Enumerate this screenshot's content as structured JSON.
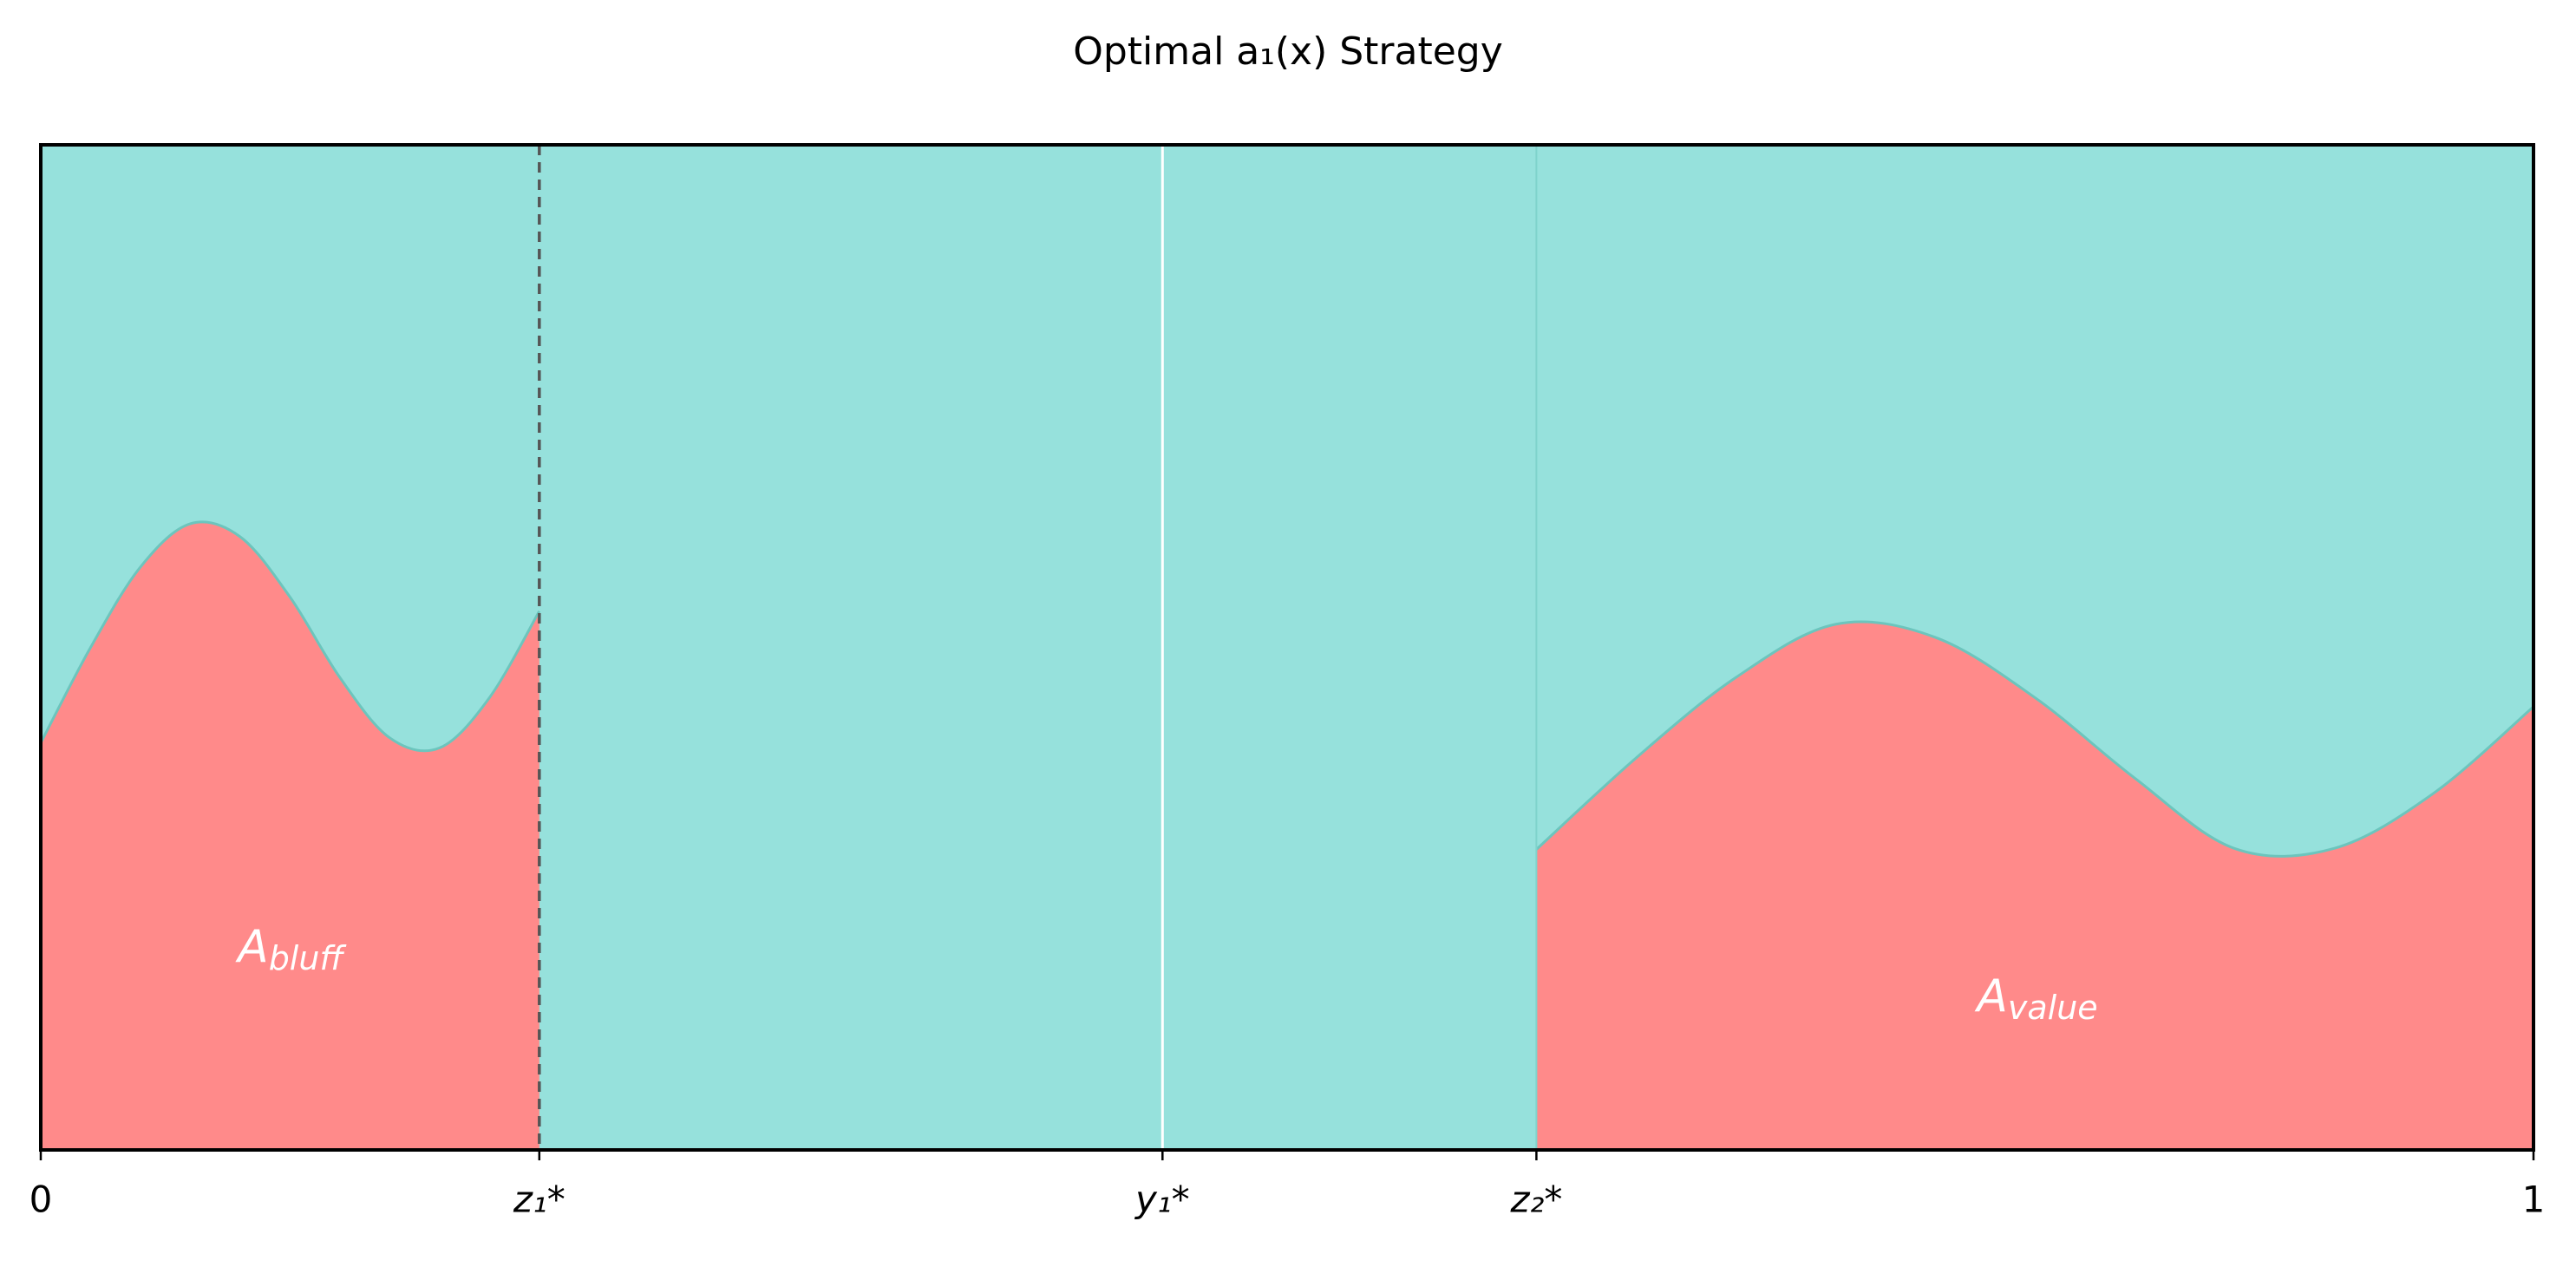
{
  "chart_data": {
    "type": "area",
    "title": "Optimal a₁(x) Strategy",
    "x": [
      0,
      0.02,
      0.04,
      0.06,
      0.08,
      0.1,
      0.12,
      0.14,
      0.16,
      0.18,
      0.2,
      0.4,
      0.6,
      0.64,
      0.68,
      0.72,
      0.76,
      0.8,
      0.84,
      0.88,
      0.92,
      0.96,
      1.0
    ],
    "series": [
      {
        "color": "#ff8a8a",
        "line_color": "#6cc5bd",
        "values": [
          0.405,
          0.5,
          0.58,
          0.623,
          0.61,
          0.55,
          0.47,
          0.41,
          0.4,
          0.45,
          0.536,
          null,
          0.299,
          0.39,
          0.47,
          0.523,
          0.51,
          0.45,
          0.37,
          0.3,
          0.3,
          0.355,
          0.441
        ]
      }
    ],
    "background_color": "#96e1dc",
    "xlim": [
      0,
      1
    ],
    "ylim": [
      0,
      1
    ],
    "xticks": [
      0,
      {
        "value": 0.2,
        "label": "z₁*"
      },
      {
        "value": 0.45,
        "label": "y₁*"
      },
      {
        "value": 0.6,
        "label": "z₂*"
      },
      1
    ],
    "annotations": [
      {
        "text": "A",
        "subscript": "bluff"
      },
      {
        "text": "A",
        "subscript": "value"
      }
    ]
  }
}
